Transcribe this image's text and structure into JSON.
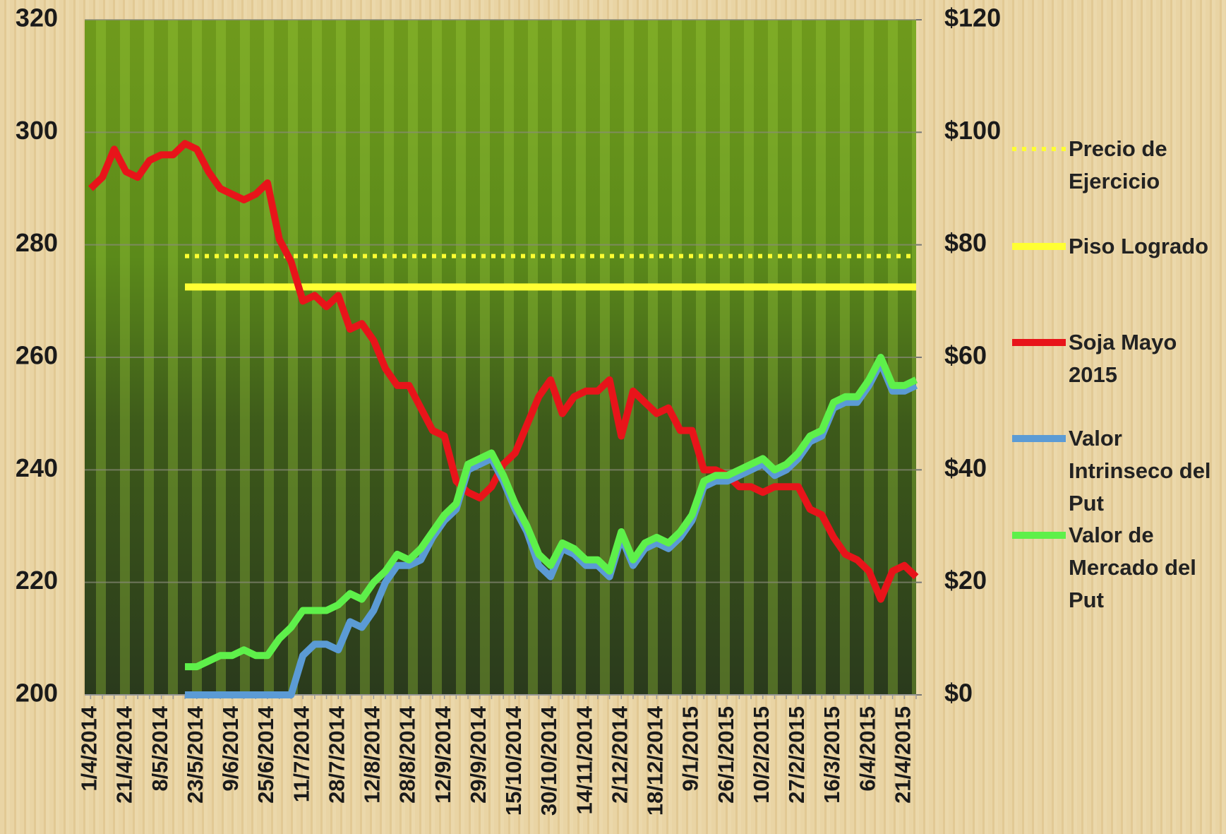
{
  "chart_data": {
    "type": "line",
    "categories": [
      "1/4/2014",
      null,
      null,
      "21/4/2014",
      null,
      null,
      "8/5/2014",
      null,
      null,
      "23/5/2014",
      null,
      null,
      "9/6/2014",
      null,
      null,
      "25/6/2014",
      null,
      null,
      "11/7/2014",
      null,
      null,
      "28/7/2014",
      null,
      null,
      "12/8/2014",
      null,
      null,
      "28/8/2014",
      null,
      null,
      "12/9/2014",
      null,
      null,
      "29/9/2014",
      null,
      null,
      "15/10/2014",
      null,
      null,
      "30/10/2014",
      null,
      null,
      "14/11/2014",
      null,
      null,
      "2/12/2014",
      null,
      null,
      "18/12/2014",
      null,
      null,
      "9/1/2015",
      null,
      null,
      "26/1/2015",
      null,
      null,
      "10/2/2015",
      null,
      null,
      "27/2/2015",
      null,
      null,
      "16/3/2015",
      null,
      null,
      "6/4/2015",
      null,
      null,
      "21/4/2015",
      null
    ],
    "series": [
      {
        "name": "Precio de Ejercicio",
        "color": "#ffff33",
        "style": "dotted",
        "values": [
          null,
          null,
          null,
          null,
          null,
          null,
          null,
          null,
          278,
          278,
          278,
          278,
          278,
          278,
          278,
          278,
          278,
          278,
          278,
          278,
          278,
          278,
          278,
          278,
          278,
          278,
          278,
          278,
          278,
          278,
          278,
          278,
          278,
          278,
          278,
          278,
          278,
          278,
          278,
          278,
          278,
          278,
          278,
          278,
          278,
          278,
          278,
          278,
          278,
          278,
          278,
          278,
          278,
          278,
          278,
          278,
          278,
          278,
          278,
          278,
          278,
          278,
          278,
          278,
          278,
          278,
          278,
          278,
          278,
          278,
          278
        ]
      },
      {
        "name": "Piso Logrado",
        "color": "#ffff33",
        "style": "solid",
        "values": [
          null,
          null,
          null,
          null,
          null,
          null,
          null,
          null,
          272.5,
          272.5,
          272.5,
          272.5,
          272.5,
          272.5,
          272.5,
          272.5,
          272.5,
          272.5,
          272.5,
          272.5,
          272.5,
          272.5,
          272.5,
          272.5,
          272.5,
          272.5,
          272.5,
          272.5,
          272.5,
          272.5,
          272.5,
          272.5,
          272.5,
          272.5,
          272.5,
          272.5,
          272.5,
          272.5,
          272.5,
          272.5,
          272.5,
          272.5,
          272.5,
          272.5,
          272.5,
          272.5,
          272.5,
          272.5,
          272.5,
          272.5,
          272.5,
          272.5,
          272.5,
          272.5,
          272.5,
          272.5,
          272.5,
          272.5,
          272.5,
          272.5,
          272.5,
          272.5,
          272.5,
          272.5,
          272.5,
          272.5,
          272.5,
          272.5,
          272.5,
          272.5,
          272.5
        ]
      },
      {
        "name": "Soja Mayo 2015",
        "color": "#e8141a",
        "style": "solid",
        "values": [
          290,
          292,
          297,
          293,
          292,
          295,
          296,
          296,
          298,
          297,
          293,
          290,
          289,
          288,
          289,
          291,
          281,
          277,
          270,
          271,
          269,
          271,
          265,
          266,
          263,
          258,
          255,
          255,
          251,
          247,
          246,
          238,
          236,
          235,
          237,
          241,
          243,
          248,
          253,
          256,
          250,
          253,
          254,
          254,
          256,
          246,
          254,
          252,
          250,
          251,
          247,
          247,
          240,
          240,
          239,
          237,
          237,
          236,
          237,
          237,
          237,
          233,
          232,
          228,
          225,
          224,
          222,
          217,
          222,
          223,
          221
        ]
      },
      {
        "name": "Valor Intrinseco del Put",
        "color": "#5b9bd5",
        "style": "solid",
        "axis": "y2",
        "values": [
          null,
          null,
          null,
          null,
          null,
          null,
          null,
          null,
          0,
          0,
          0,
          0,
          0,
          0,
          0,
          0,
          0,
          0,
          7,
          9,
          9,
          8,
          13,
          12,
          15,
          20,
          23,
          23,
          24,
          28,
          31,
          33,
          40,
          41,
          42,
          38,
          33,
          29,
          23,
          21,
          26,
          25,
          23,
          23,
          21,
          28,
          23,
          26,
          27,
          26,
          28,
          31,
          37,
          38,
          38,
          39,
          40,
          41,
          39,
          40,
          42,
          45,
          46,
          51,
          52,
          52,
          55,
          59,
          54,
          54,
          55
        ]
      },
      {
        "name": "Valor de Mercado del Put",
        "color": "#5ef04a",
        "style": "solid",
        "axis": "y2",
        "values": [
          null,
          null,
          null,
          null,
          null,
          null,
          null,
          null,
          5,
          5,
          6,
          7,
          7,
          8,
          7,
          7,
          10,
          12,
          15,
          15,
          15,
          16,
          18,
          17,
          20,
          22,
          25,
          24,
          26,
          29,
          32,
          34,
          41,
          42,
          43,
          39,
          34,
          30,
          25,
          23,
          27,
          26,
          24,
          24,
          22,
          29,
          24,
          27,
          28,
          27,
          29,
          32,
          38,
          39,
          39,
          40,
          41,
          42,
          40,
          41,
          43,
          46,
          47,
          52,
          53,
          53,
          56,
          60,
          55,
          55,
          56
        ]
      }
    ],
    "ylim": [
      200,
      320
    ],
    "yticks": [
      200,
      220,
      240,
      260,
      280,
      300,
      320
    ],
    "y2lim": [
      0,
      120
    ],
    "y2ticks": [
      {
        "value": 0,
        "label": "$0"
      },
      {
        "value": 20,
        "label": "$20"
      },
      {
        "value": 40,
        "label": "$40"
      },
      {
        "value": 60,
        "label": "$60"
      },
      {
        "value": 80,
        "label": "$80"
      },
      {
        "value": 100,
        "label": "$100"
      },
      {
        "value": 120,
        "label": "$120"
      }
    ],
    "grid": true,
    "legend": "right"
  }
}
